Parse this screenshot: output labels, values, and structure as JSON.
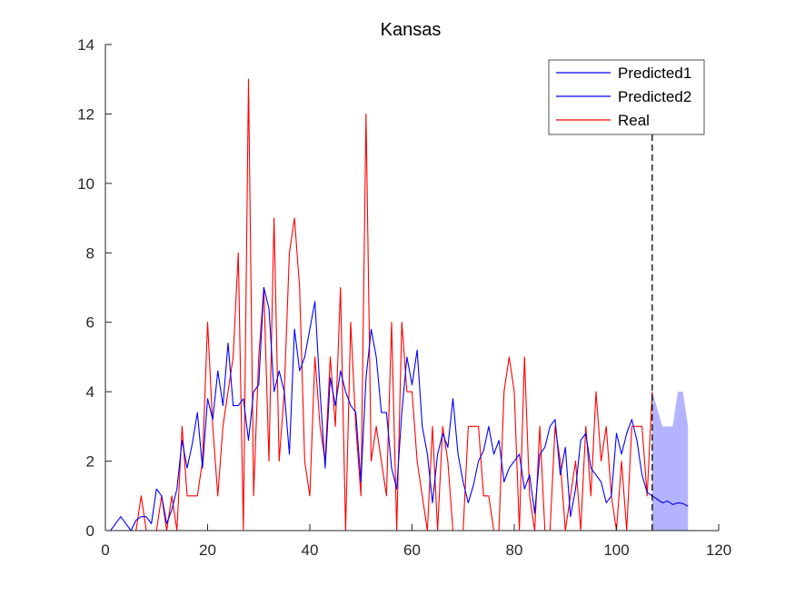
{
  "chart_data": {
    "type": "line",
    "title": "Kansas",
    "xlabel": "",
    "ylabel": "",
    "xlim": [
      0,
      120
    ],
    "ylim": [
      0,
      14
    ],
    "xticks": [
      0,
      20,
      40,
      60,
      80,
      100,
      120
    ],
    "yticks": [
      0,
      2,
      4,
      6,
      8,
      10,
      12,
      14
    ],
    "grid": false,
    "legend_position": "top-right",
    "forecast_start_x": 107,
    "series": [
      {
        "name": "Predicted1",
        "color": "#0000ff",
        "x": [
          1,
          2,
          3,
          4,
          5,
          6,
          7,
          8,
          9,
          10,
          11,
          12,
          13,
          14,
          15,
          16,
          17,
          18,
          19,
          20,
          21,
          22,
          23,
          24,
          25,
          26,
          27,
          28,
          29,
          30,
          31,
          32,
          33,
          34,
          35,
          36,
          37,
          38,
          39,
          40,
          41,
          42,
          43,
          44,
          45,
          46,
          47,
          48,
          49,
          50,
          51,
          52,
          53,
          54,
          55,
          56,
          57,
          58,
          59,
          60,
          61,
          62,
          63,
          64,
          65,
          66,
          67,
          68,
          69,
          70,
          71,
          72,
          73,
          74,
          75,
          76,
          77,
          78,
          79,
          80,
          81,
          82,
          83,
          84,
          85,
          86,
          87,
          88,
          89,
          90,
          91,
          92,
          93,
          94,
          95,
          96,
          97,
          98,
          99,
          100,
          101,
          102,
          103,
          104,
          105,
          106,
          107
        ],
        "values": [
          0,
          0.2,
          0.4,
          0.2,
          0,
          0.3,
          0.4,
          0.4,
          0.2,
          1.2,
          1,
          0.2,
          0.6,
          1.2,
          2.6,
          1.8,
          2.5,
          3.4,
          1.8,
          3.8,
          3.2,
          4.6,
          3.6,
          5.4,
          3.6,
          3.6,
          3.8,
          2.6,
          4,
          4.2,
          7,
          6.4,
          4,
          4.6,
          4,
          2.2,
          5.8,
          4.6,
          5,
          5.8,
          6.6,
          4,
          1.8,
          4.4,
          3.6,
          4.6,
          4,
          3.6,
          3.4,
          1.4,
          4.4,
          5.8,
          5,
          3.4,
          3.4,
          1.8,
          1.2,
          3.4,
          5,
          4.2,
          5.2,
          3,
          2.2,
          0.8,
          2.2,
          2.8,
          2.4,
          3.8,
          2.2,
          1.4,
          0.8,
          1.3,
          2,
          2.3,
          3,
          2.2,
          2.6,
          1.4,
          1.8,
          2,
          2.2,
          1.2,
          1.6,
          0.5,
          2.2,
          2.4,
          3,
          3.2,
          1.6,
          2.4,
          0.4,
          1.2,
          2.6,
          2.8,
          1.8,
          1.6,
          1.4,
          0.8,
          1,
          2.8,
          2.2,
          2.8,
          3.2,
          2.6,
          1.6,
          1.1,
          1
        ]
      },
      {
        "name": "Predicted2",
        "color": "#0000ff",
        "x": [
          107,
          108,
          109,
          110,
          111,
          112,
          113,
          114
        ],
        "values": [
          1,
          0.9,
          0.8,
          0.85,
          0.75,
          0.8,
          0.78,
          0.7
        ],
        "band_upper": [
          4,
          3.5,
          3,
          3,
          3,
          4,
          4,
          3
        ],
        "band_lower": [
          0,
          0,
          0,
          0,
          0,
          0,
          0,
          0
        ],
        "band_color": "#b3b3ff"
      },
      {
        "name": "Real",
        "color": "#ff0000",
        "x": [
          1,
          2,
          3,
          4,
          5,
          6,
          7,
          8,
          9,
          10,
          11,
          12,
          13,
          14,
          15,
          16,
          17,
          18,
          19,
          20,
          21,
          22,
          23,
          24,
          25,
          26,
          27,
          28,
          29,
          30,
          31,
          32,
          33,
          34,
          35,
          36,
          37,
          38,
          39,
          40,
          41,
          42,
          43,
          44,
          45,
          46,
          47,
          48,
          49,
          50,
          51,
          52,
          53,
          54,
          55,
          56,
          57,
          58,
          59,
          60,
          61,
          62,
          63,
          64,
          65,
          66,
          67,
          68,
          69,
          70,
          71,
          72,
          73,
          74,
          75,
          76,
          77,
          78,
          79,
          80,
          81,
          82,
          83,
          84,
          85,
          86,
          87,
          88,
          89,
          90,
          91,
          92,
          93,
          94,
          95,
          96,
          97,
          98,
          99,
          100,
          101,
          102,
          103,
          104,
          105,
          106,
          107
        ],
        "values": [
          0,
          0,
          0,
          0,
          0,
          0,
          1,
          0,
          0,
          0,
          1,
          0,
          1,
          0,
          3,
          1,
          1,
          1,
          2,
          6,
          3,
          1,
          3,
          4,
          5,
          8,
          0,
          13,
          1,
          5,
          7,
          2,
          9,
          2,
          4,
          8,
          9,
          7,
          2,
          1,
          5,
          3,
          2,
          5,
          3,
          7,
          0,
          6,
          3,
          1,
          12,
          2,
          3,
          2,
          1,
          6,
          0,
          6,
          4,
          4,
          2,
          1,
          0,
          3,
          0,
          3,
          2,
          0,
          0,
          0,
          3,
          3,
          3,
          1,
          1,
          0,
          0,
          4,
          5,
          4,
          0,
          5,
          1,
          0,
          3,
          0,
          0,
          3,
          2,
          0,
          1,
          2,
          0,
          3,
          1,
          4,
          2,
          3,
          1,
          0,
          2,
          0,
          3,
          3,
          3,
          1,
          4
        ]
      }
    ]
  }
}
